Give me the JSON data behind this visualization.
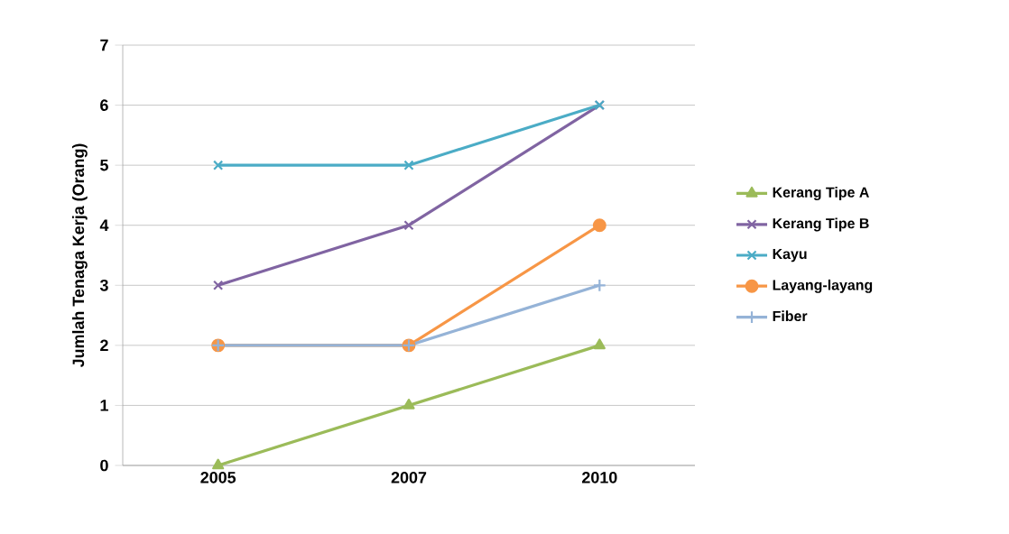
{
  "chart_data": {
    "type": "line",
    "ylabel": "Jumlah Tenaga Kerja (Orang)",
    "categories": [
      "2005",
      "2007",
      "2010"
    ],
    "series": [
      {
        "name": "Kerang Tipe A",
        "color": "#9bbb59",
        "marker": "triangle",
        "values": [
          0,
          1,
          2
        ]
      },
      {
        "name": "Kerang Tipe B",
        "color": "#8064a2",
        "marker": "cross",
        "values": [
          3,
          4,
          6
        ]
      },
      {
        "name": "Kayu",
        "color": "#4bacc6",
        "marker": "cross",
        "values": [
          5,
          5,
          6
        ]
      },
      {
        "name": "Layang-layang",
        "color": "#f79646",
        "marker": "circle",
        "values": [
          2,
          2,
          4
        ]
      },
      {
        "name": "Fiber",
        "color": "#95b3d7",
        "marker": "plus",
        "values": [
          2,
          2,
          3
        ]
      }
    ],
    "ylim": [
      0,
      7
    ],
    "yticks": [
      0,
      1,
      2,
      3,
      4,
      5,
      6,
      7
    ],
    "grid": "y",
    "legend": "right",
    "line_style": "solid"
  }
}
